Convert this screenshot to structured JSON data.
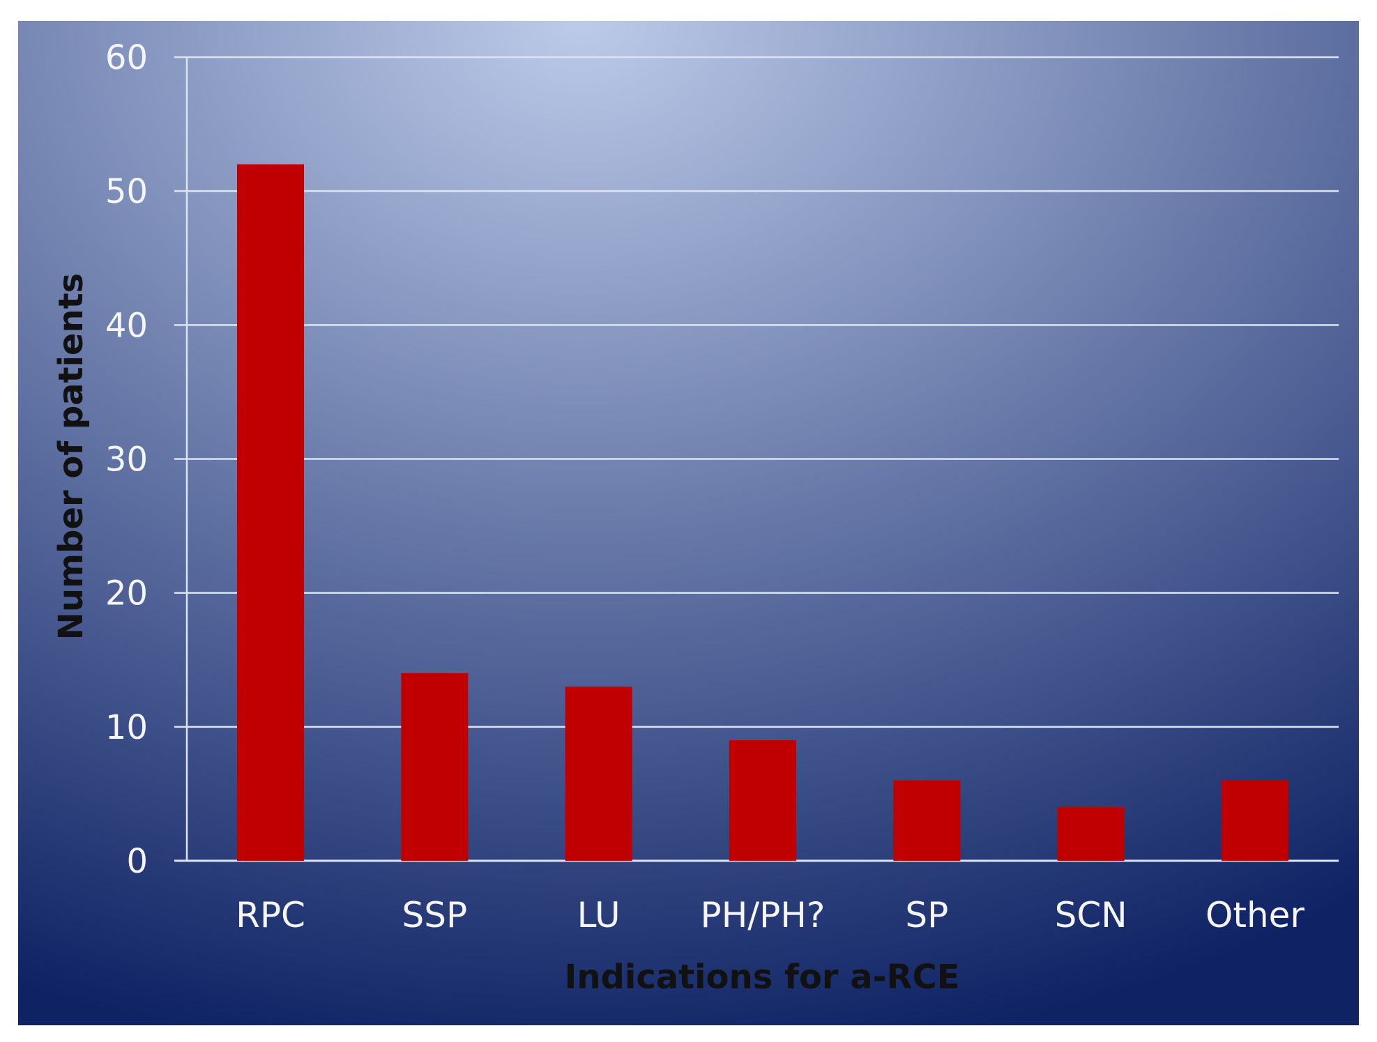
{
  "chart_data": {
    "type": "bar",
    "title": "",
    "xlabel": "Indications for a-RCE",
    "ylabel": "Number of patients",
    "categories": [
      "RPC",
      "SSP",
      "LU",
      "PH/PH?",
      "SP",
      "SCN",
      "Other"
    ],
    "values": [
      52,
      14,
      13,
      9,
      6,
      4,
      6
    ],
    "ylim": [
      0,
      60
    ],
    "yticks": [
      0,
      10,
      20,
      30,
      40,
      50,
      60
    ],
    "ytick_labels": [
      "0",
      "10",
      "20",
      "30",
      "40",
      "50",
      "60"
    ],
    "grid": true,
    "legend": "none",
    "colors": {
      "bar": "#c00000",
      "background_center": "#bccbe9",
      "background_edge": "#0e2264",
      "grid": "#dde3f0",
      "tick_label": "#f4f6fb",
      "axis_title": "#111111"
    }
  }
}
